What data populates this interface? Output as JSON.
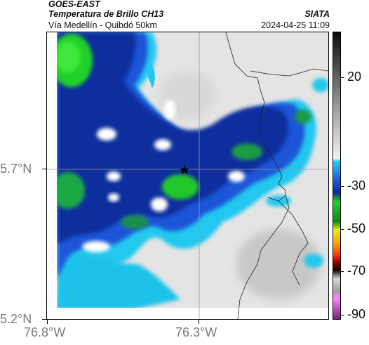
{
  "header": {
    "satellite": "GOES-EAST",
    "product": "Temperatura de Brillo CH13",
    "route": "Vía Medellín - Quibdó 50km",
    "agency": "SIATA",
    "timestamp": "2024-04-25 11:09"
  },
  "map": {
    "lat_labels": [
      "5.7°N",
      "5.2°N"
    ],
    "lon_labels": [
      "76.8°W",
      "76.3°W"
    ],
    "marker_icon": "star-icon"
  },
  "colorbar": {
    "labels": [
      "20",
      "-30",
      "-50",
      "-70",
      "-90"
    ]
  },
  "colors": {
    "dark_blue": "#0b2a9a",
    "blue": "#1f55d8",
    "cyan": "#1ed0f0",
    "green": "#1fd42a",
    "gray_bg": "#e6e6e6"
  }
}
